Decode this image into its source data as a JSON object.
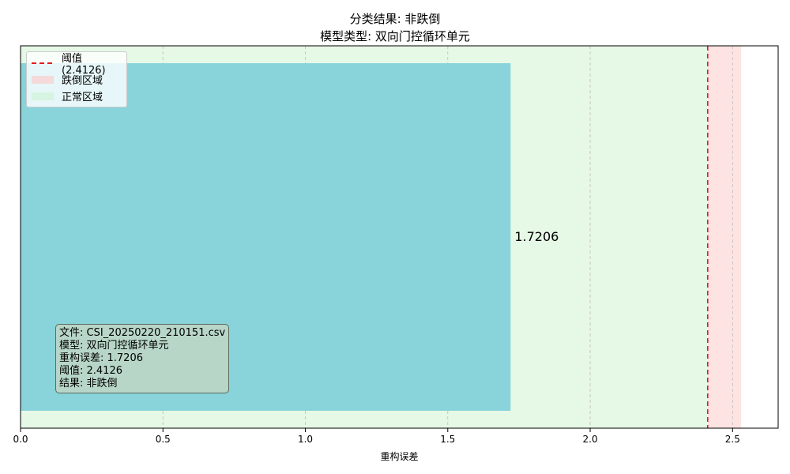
{
  "title": {
    "line1": "分类结果: 非跌倒",
    "line2": "模型类型: 双向门控循环单元"
  },
  "chart_data": {
    "type": "bar",
    "orientation": "horizontal",
    "values": [
      1.7206
    ],
    "value_label": "1.7206",
    "xlabel": "重构误差",
    "xlim": [
      0,
      2.66
    ],
    "xticks": [
      0.0,
      0.5,
      1.0,
      1.5,
      2.0,
      2.5
    ],
    "xtick_labels": [
      "0.0",
      "0.5",
      "1.0",
      "1.5",
      "2.0",
      "2.5"
    ],
    "threshold": 2.4126,
    "normal_region": [
      0,
      2.4126
    ],
    "anomaly_region": [
      2.4126,
      2.53
    ],
    "grid": "x-dashed",
    "legend_placement": "upper-left",
    "legend": [
      {
        "label": "阈值 (2.4126)"
      },
      {
        "label": "跌倒区域"
      },
      {
        "label": "正常区域"
      }
    ]
  },
  "info_box": {
    "lines": [
      "文件: CSI_20250220_210151.csv",
      "模型: 双向门控循环单元",
      "重构误差: 1.7206",
      "阈值: 2.4126",
      "结果: 非跌倒"
    ]
  },
  "colors": {
    "bar": "#89d3da",
    "normal_region": "#e6f8e6",
    "anomaly_region": "#fde3e1",
    "threshold_line": "#e41a1c",
    "grid": "#bfbfbf"
  }
}
